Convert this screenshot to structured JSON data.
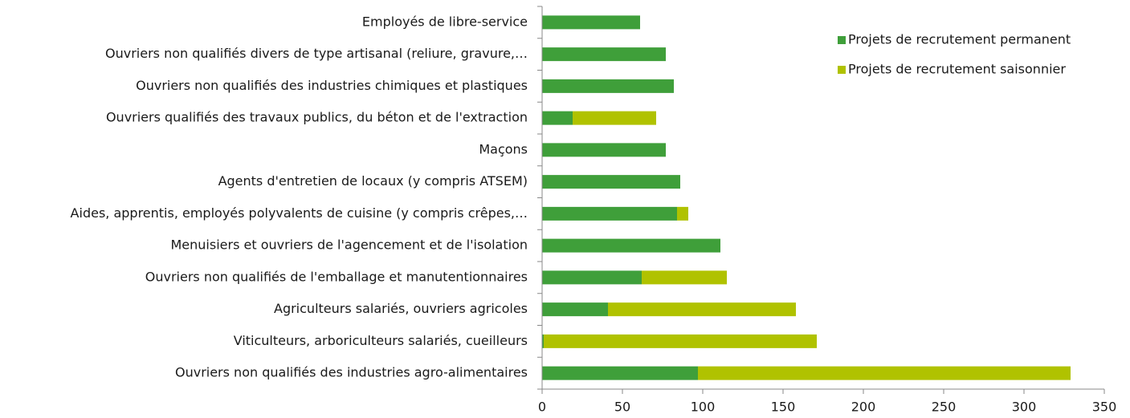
{
  "chart_data": {
    "type": "stacked-barh",
    "categories": [
      "Employés de libre-service",
      "Ouvriers non qualifiés divers de type artisanal (reliure, gravure,…",
      "Ouvriers non qualifiés des industries chimiques et plastiques",
      "Ouvriers qualifiés des travaux publics, du béton et de l'extraction",
      "Maçons",
      "Agents d'entretien de locaux (y compris ATSEM)",
      "Aides, apprentis, employés polyvalents de cuisine (y compris crêpes,…",
      "Menuisiers et ouvriers de l'agencement et de l'isolation",
      "Ouvriers non qualifiés de l'emballage et manutentionnaires",
      "Agriculteurs salariés, ouvriers agricoles",
      "Viticulteurs, arboriculteurs salariés, cueilleurs",
      "Ouvriers non qualifiés des industries agro-alimentaires"
    ],
    "series": [
      {
        "name": "Projets de recrutement permanent",
        "color": "#3f9f3a",
        "values": [
          61,
          77,
          82,
          19,
          77,
          86,
          84,
          111,
          62,
          41,
          1,
          97
        ]
      },
      {
        "name": "Projets de recrutement saisonnier",
        "color": "#b0c200",
        "values": [
          0,
          0,
          0,
          52,
          0,
          0,
          7,
          0,
          53,
          117,
          170,
          232
        ]
      }
    ],
    "xlim": [
      0,
      350
    ],
    "xticks": [
      0,
      50,
      100,
      150,
      200,
      250,
      300,
      350
    ],
    "legend": "upper right"
  }
}
